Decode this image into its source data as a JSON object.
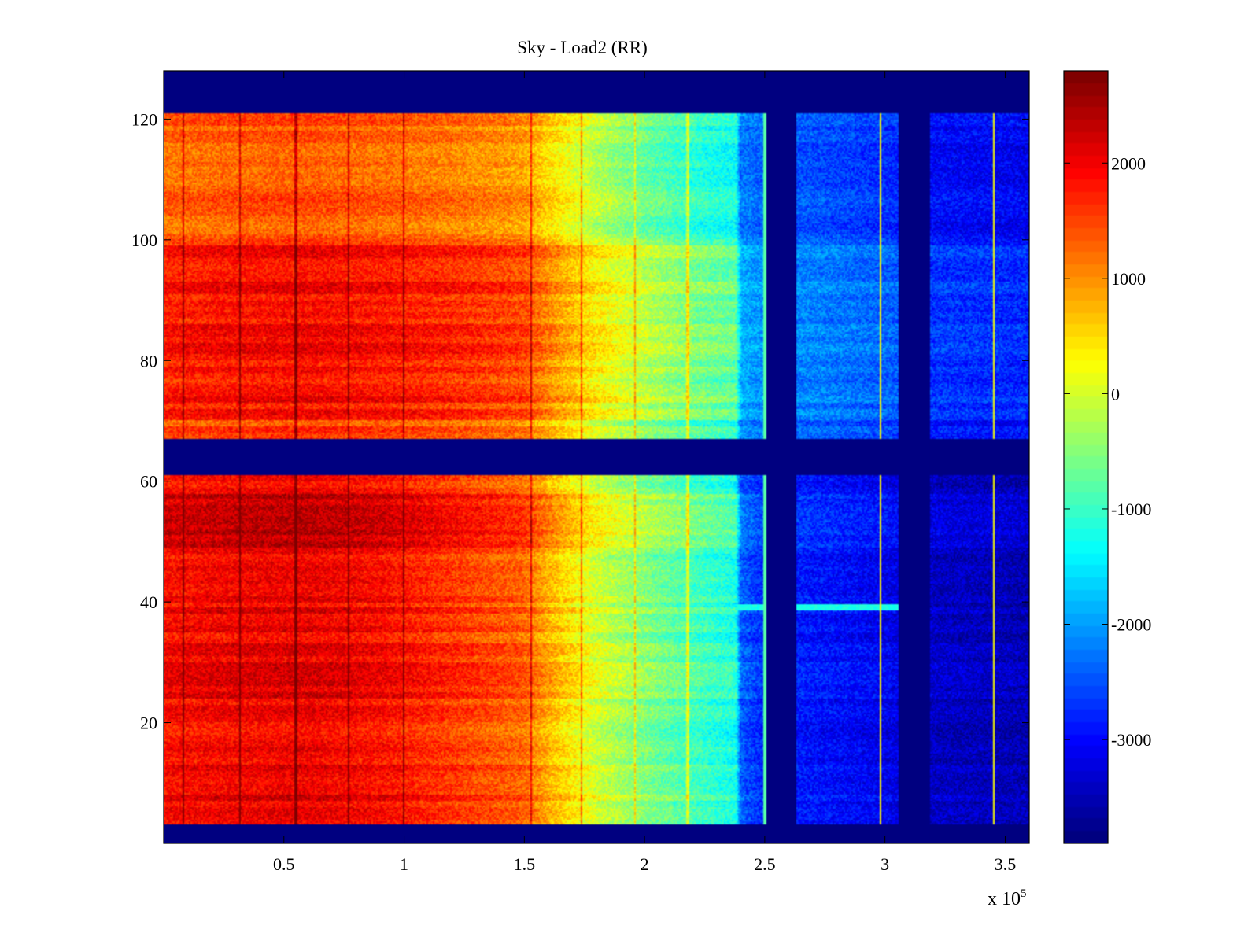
{
  "chart_data": {
    "type": "heatmap",
    "title": "Sky - Load2 (RR)",
    "xlabel": "",
    "ylabel": "",
    "x_multiplier_label": "x 10",
    "x_multiplier_exponent": "5",
    "xlim": [
      0,
      3.6
    ],
    "ylim": [
      0,
      128
    ],
    "grid": false,
    "x_ticks": [
      0.5,
      1,
      1.5,
      2,
      2.5,
      3,
      3.5
    ],
    "x_tick_labels": [
      "0.5",
      "1",
      "1.5",
      "2",
      "2.5",
      "3",
      "3.5"
    ],
    "y_ticks": [
      20,
      40,
      60,
      80,
      100,
      120
    ],
    "y_tick_labels": [
      "20",
      "40",
      "60",
      "80",
      "100",
      "120"
    ],
    "colorbar": {
      "colormap": "jet",
      "clim": [
        -3900,
        2800
      ],
      "ticks": [
        2000,
        1000,
        0,
        -1000,
        -2000,
        -3000
      ],
      "tick_labels": [
        "2000",
        "1000",
        "0",
        "-1000",
        "-2000",
        "-3000"
      ]
    },
    "masked_channel_bands": [
      [
        0,
        3
      ],
      [
        61,
        67
      ],
      [
        121,
        128
      ]
    ],
    "masked_time_bands": [
      [
        2.51,
        2.63
      ],
      [
        3.06,
        3.19
      ]
    ],
    "profile_x": [
      0.0,
      0.3,
      0.6,
      0.9,
      1.2,
      1.5,
      1.6,
      1.8,
      2.0,
      2.2,
      2.38,
      2.4,
      2.5,
      2.7,
      3.0,
      3.2,
      3.6
    ],
    "profile_value_top": [
      1400,
      1500,
      1550,
      1450,
      1300,
      1100,
      700,
      0,
      -500,
      -900,
      -1100,
      -2100,
      -2300,
      -2400,
      -2600,
      -2900,
      -3000
    ],
    "profile_value_bottom": [
      1900,
      2000,
      2050,
      1900,
      1600,
      1300,
      800,
      0,
      -500,
      -900,
      -1200,
      -2400,
      -2800,
      -2900,
      -3100,
      -3400,
      -3500
    ],
    "vertical_streak_x": [
      0.08,
      0.32,
      0.55,
      0.77,
      1.0,
      1.53,
      1.74,
      1.96,
      2.18
    ]
  },
  "colors": {
    "background": "#ffffff",
    "axes_edge": "#000000",
    "mask": "#00008f"
  }
}
